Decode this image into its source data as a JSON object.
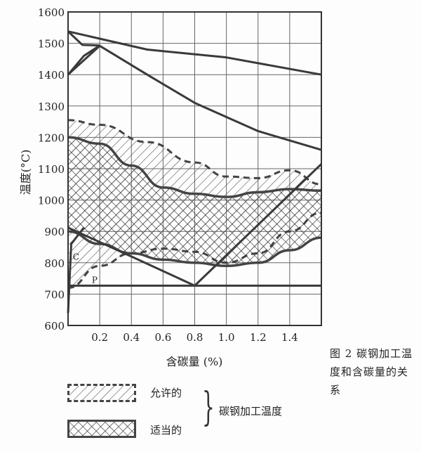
{
  "chart_data": {
    "type": "line",
    "ylabel": "温度(°C)",
    "xlabel": "含碳量 (%)",
    "x_ticks": [
      "0.2",
      "0.4",
      "0.6",
      "0.8",
      "1.0",
      "1.2",
      "1.4"
    ],
    "y_ticks": [
      "600",
      "700",
      "800",
      "900",
      "1000",
      "1100",
      "1200",
      "1300",
      "1400",
      "1500",
      "1600"
    ],
    "xlim": [
      0,
      1.6
    ],
    "ylim": [
      600,
      1600
    ],
    "grid": true,
    "point_labels": [
      "C",
      "P"
    ],
    "series": [
      {
        "x": [
          0,
          0.5,
          1.0,
          1.6
        ],
        "y": [
          1538,
          1480,
          1455,
          1400
        ]
      },
      {
        "x": [
          0,
          0.2,
          0.5,
          0.8,
          1.2,
          1.6
        ],
        "y": [
          1400,
          1492,
          1400,
          1310,
          1220,
          1160
        ]
      },
      {
        "x": [
          0,
          0.09,
          0.2
        ],
        "y": [
          1538,
          1495,
          1493
        ]
      },
      {
        "x": [
          0,
          0.1,
          0.2
        ],
        "y": [
          1400,
          1460,
          1493
        ]
      },
      {
        "x": [
          0,
          0.4,
          0.8
        ],
        "y": [
          912,
          820,
          727
        ]
      },
      {
        "x": [
          0.8,
          1.6
        ],
        "y": [
          727,
          1115
        ]
      },
      {
        "x": [
          0,
          1.6
        ],
        "y": [
          727,
          727
        ]
      },
      {
        "x": [
          0,
          0.02,
          0.1
        ],
        "y": [
          640,
          860,
          912
        ]
      }
    ],
    "bands": [
      {
        "legend": "允许的",
        "upper": {
          "x": [
            0,
            0.2,
            0.5,
            0.8,
            1.0,
            1.2,
            1.4,
            1.6
          ],
          "y": [
            1255,
            1240,
            1185,
            1120,
            1075,
            1070,
            1095,
            1050
          ]
        },
        "lower": {
          "x": [
            0,
            0.2,
            0.4,
            0.6,
            0.8,
            1.0,
            1.2,
            1.4,
            1.6
          ],
          "y": [
            720,
            790,
            830,
            845,
            835,
            800,
            830,
            900,
            960
          ]
        }
      },
      {
        "legend": "适当的",
        "upper": {
          "x": [
            0,
            0.2,
            0.4,
            0.6,
            0.8,
            1.0,
            1.2,
            1.4,
            1.6
          ],
          "y": [
            1200,
            1180,
            1110,
            1040,
            1020,
            1010,
            1025,
            1035,
            1030
          ]
        },
        "lower": {
          "x": [
            0,
            0.2,
            0.4,
            0.6,
            0.8,
            1.0,
            1.2,
            1.4,
            1.6
          ],
          "y": [
            900,
            860,
            830,
            810,
            800,
            790,
            800,
            840,
            880
          ]
        }
      }
    ]
  },
  "legend": {
    "allowed_label": "允许的",
    "proper_label": "适当的",
    "group_label": "碳钢加工温度"
  },
  "caption": "图 2   碳钢加工温度和含碳量的关系"
}
